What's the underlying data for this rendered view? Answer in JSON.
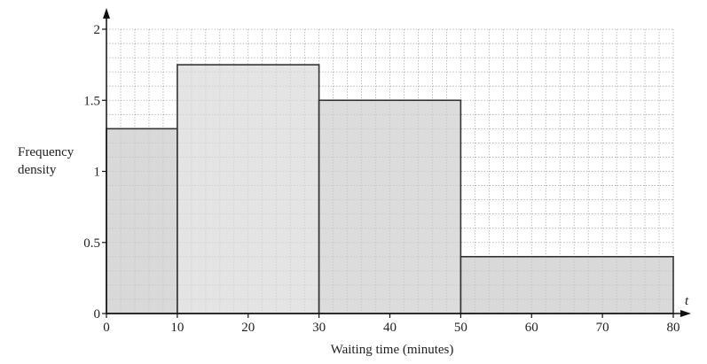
{
  "chart_data": {
    "type": "bar",
    "subtype": "histogram",
    "bins": [
      {
        "from": 0,
        "to": 10,
        "frequency_density": 1.3
      },
      {
        "from": 10,
        "to": 30,
        "frequency_density": 1.75
      },
      {
        "from": 30,
        "to": 50,
        "frequency_density": 1.5
      },
      {
        "from": 50,
        "to": 80,
        "frequency_density": 0.4
      }
    ],
    "xlabel": "Waiting time (minutes)",
    "ylabel_lines": [
      "Frequency",
      "density"
    ],
    "x_variable": "t",
    "xlim": [
      0,
      80
    ],
    "ylim": [
      0,
      2
    ],
    "x_ticks": [
      0,
      10,
      20,
      30,
      40,
      50,
      60,
      70,
      80
    ],
    "y_ticks": [
      0,
      0.5,
      1,
      1.5,
      2
    ],
    "y_tick_labels": [
      "0",
      "0.5",
      "1",
      "1.5",
      "2"
    ],
    "grid": {
      "on": true,
      "style": "dotted",
      "minor_x_step": 2,
      "minor_y_step": 0.1
    },
    "colors": {
      "bars": [
        "#cacaca",
        "#d9d9d9",
        "#cfcfcf",
        "#cbcbcb"
      ],
      "bar_outline": "#333333",
      "grid": "#9a9a9a",
      "axes": "#111111"
    }
  }
}
